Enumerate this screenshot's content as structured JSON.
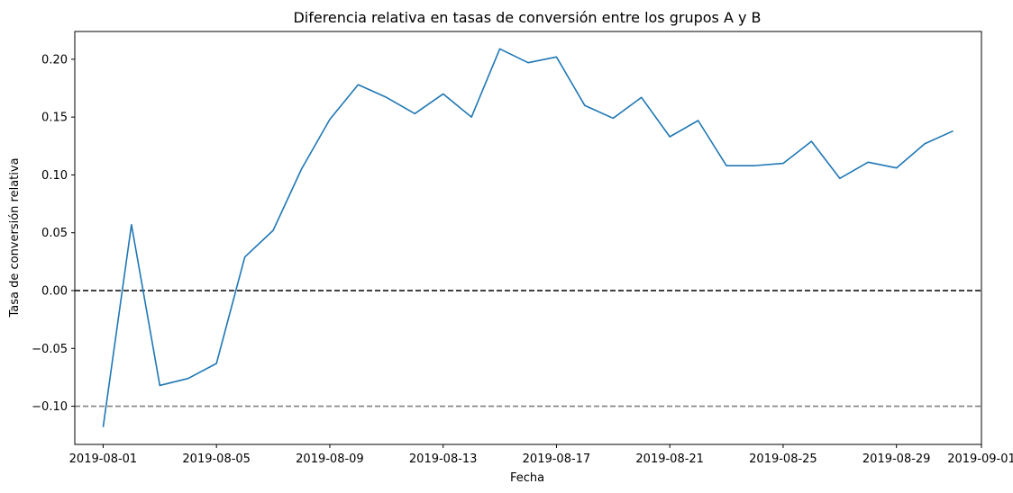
{
  "chart_data": {
    "type": "line",
    "title": "Diferencia relativa en tasas de conversión entre los grupos A y B",
    "xlabel": "Fecha",
    "ylabel": "Tasa de conversión relativa",
    "x": [
      "2019-08-01",
      "2019-08-02",
      "2019-08-03",
      "2019-08-04",
      "2019-08-05",
      "2019-08-06",
      "2019-08-07",
      "2019-08-08",
      "2019-08-09",
      "2019-08-10",
      "2019-08-11",
      "2019-08-12",
      "2019-08-13",
      "2019-08-14",
      "2019-08-15",
      "2019-08-16",
      "2019-08-17",
      "2019-08-18",
      "2019-08-19",
      "2019-08-20",
      "2019-08-21",
      "2019-08-22",
      "2019-08-23",
      "2019-08-24",
      "2019-08-25",
      "2019-08-26",
      "2019-08-27",
      "2019-08-28",
      "2019-08-29",
      "2019-08-30",
      "2019-08-31"
    ],
    "series": [
      {
        "color": "#1f77b4",
        "values": [
          -0.118,
          0.057,
          -0.082,
          -0.076,
          -0.063,
          0.029,
          0.052,
          0.105,
          0.148,
          0.178,
          0.167,
          0.153,
          0.17,
          0.15,
          0.209,
          0.197,
          0.202,
          0.16,
          0.149,
          0.167,
          0.133,
          0.147,
          0.108,
          0.108,
          0.11,
          0.129,
          0.097,
          0.111,
          0.106,
          0.127,
          0.138
        ]
      }
    ],
    "reference_lines": [
      {
        "y": 0.0,
        "style": "dashed",
        "color": "#000000"
      },
      {
        "y": -0.1,
        "style": "dashed",
        "color": "#808080"
      }
    ],
    "xlim": [
      "2019-07-31",
      "2019-09-01"
    ],
    "ylim": [
      -0.133,
      0.224
    ],
    "x_ticks": [
      "2019-08-01",
      "2019-08-05",
      "2019-08-09",
      "2019-08-13",
      "2019-08-17",
      "2019-08-21",
      "2019-08-25",
      "2019-08-29",
      "2019-09-01"
    ],
    "y_ticks": [
      -0.1,
      -0.05,
      0.0,
      0.05,
      0.1,
      0.15,
      0.2
    ],
    "y_tick_labels": [
      "−0.10",
      "−0.05",
      "0.00",
      "0.05",
      "0.10",
      "0.15",
      "0.20"
    ],
    "grid": false,
    "legend": "none"
  }
}
